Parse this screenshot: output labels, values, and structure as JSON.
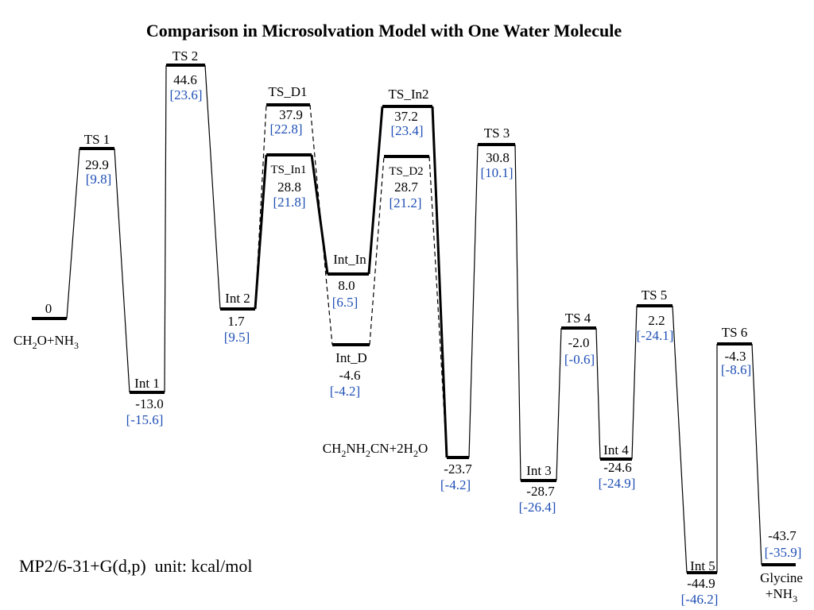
{
  "title": "Comparison in Microsolvation Model with One Water Molecule",
  "method_note": "MP2/6-31+G(d,p)  unit: kcal/mol",
  "colors": {
    "primary": "#000000",
    "bracket": "#1f4fb5"
  },
  "chart_data": {
    "type": "energy-profile",
    "unit": "kcal/mol",
    "levels": [
      {
        "id": "reactant",
        "label": "CH2O+NH3",
        "energy": "0",
        "bracket": ""
      },
      {
        "id": "ts1",
        "label": "TS 1",
        "energy": "29.9",
        "bracket": "[9.8]"
      },
      {
        "id": "int1",
        "label": "Int 1",
        "energy": "-13.0",
        "bracket": "[-15.6]"
      },
      {
        "id": "ts2",
        "label": "TS 2",
        "energy": "44.6",
        "bracket": "[23.6]"
      },
      {
        "id": "int2",
        "label": "Int 2",
        "energy": "1.7",
        "bracket": "[9.5]"
      },
      {
        "id": "ts_d1",
        "label": "TS_D1",
        "energy": "37.9",
        "bracket": "[22.8]"
      },
      {
        "id": "ts_in1",
        "label": "TS_In1",
        "energy": "28.8",
        "bracket": "[21.8]"
      },
      {
        "id": "int_in",
        "label": "Int_In",
        "energy": "8.0",
        "bracket": "[6.5]"
      },
      {
        "id": "int_d",
        "label": "Int_D",
        "energy": "-4.6",
        "bracket": "[-4.2]"
      },
      {
        "id": "ts_in2",
        "label": "TS_In2",
        "energy": "37.2",
        "bracket": "[23.4]"
      },
      {
        "id": "ts_d2",
        "label": "TS_D2",
        "energy": "28.7",
        "bracket": "[21.2]"
      },
      {
        "id": "nitrile",
        "label": "CH2NH2CN+2H2O",
        "energy": "-23.7",
        "bracket": "[-4.2]"
      },
      {
        "id": "ts3",
        "label": "TS 3",
        "energy": "30.8",
        "bracket": "[10.1]"
      },
      {
        "id": "int3",
        "label": "Int 3",
        "energy": "-28.7",
        "bracket": "[-26.4]"
      },
      {
        "id": "ts4",
        "label": "TS 4",
        "energy": "-2.0",
        "bracket": "[-0.6]"
      },
      {
        "id": "int4",
        "label": "Int 4",
        "energy": "-24.6",
        "bracket": "[-24.9]"
      },
      {
        "id": "ts5",
        "label": "TS 5",
        "energy": "2.2",
        "bracket": "[-24.1]"
      },
      {
        "id": "int5",
        "label": "Int 5",
        "energy": "-44.9",
        "bracket": "[-46.2]"
      },
      {
        "id": "ts6",
        "label": "TS 6",
        "energy": "-4.3",
        "bracket": "[-8.6]"
      },
      {
        "id": "product",
        "label": "Glycine +NH3",
        "energy": "-43.7",
        "bracket": "[-35.9]"
      }
    ]
  }
}
